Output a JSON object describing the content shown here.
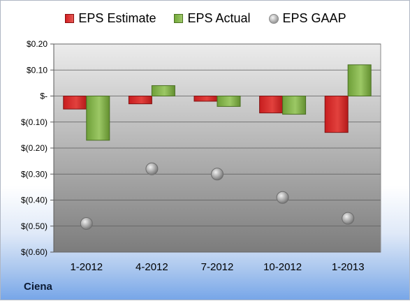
{
  "chart_data": {
    "type": "bar",
    "categories": [
      "1-2012",
      "4-2012",
      "7-2012",
      "10-2012",
      "1-2013"
    ],
    "series": [
      {
        "name": "EPS Estimate",
        "type": "bar",
        "color": "#d62a27",
        "values": [
          -0.05,
          -0.03,
          -0.02,
          -0.065,
          -0.14
        ]
      },
      {
        "name": "EPS Actual",
        "type": "bar",
        "color": "#83b34a",
        "values": [
          -0.17,
          0.04,
          -0.04,
          -0.07,
          0.12
        ]
      },
      {
        "name": "EPS GAAP",
        "type": "scatter",
        "color": "#a0a0a0",
        "values": [
          -0.49,
          -0.28,
          -0.3,
          -0.39,
          -0.47
        ]
      }
    ],
    "ylim": [
      -0.6,
      0.2
    ],
    "yticks": [
      0.2,
      0.1,
      0,
      -0.1,
      -0.2,
      -0.3,
      -0.4,
      -0.5,
      -0.6
    ],
    "ytick_labels": [
      "$0.20",
      "$0.10",
      "$-",
      "$(0.10)",
      "$(0.20)",
      "$(0.30)",
      "$(0.40)",
      "$(0.50)",
      "$(0.60)"
    ],
    "grid": true,
    "legend_position": "top",
    "company": "Ciena"
  }
}
